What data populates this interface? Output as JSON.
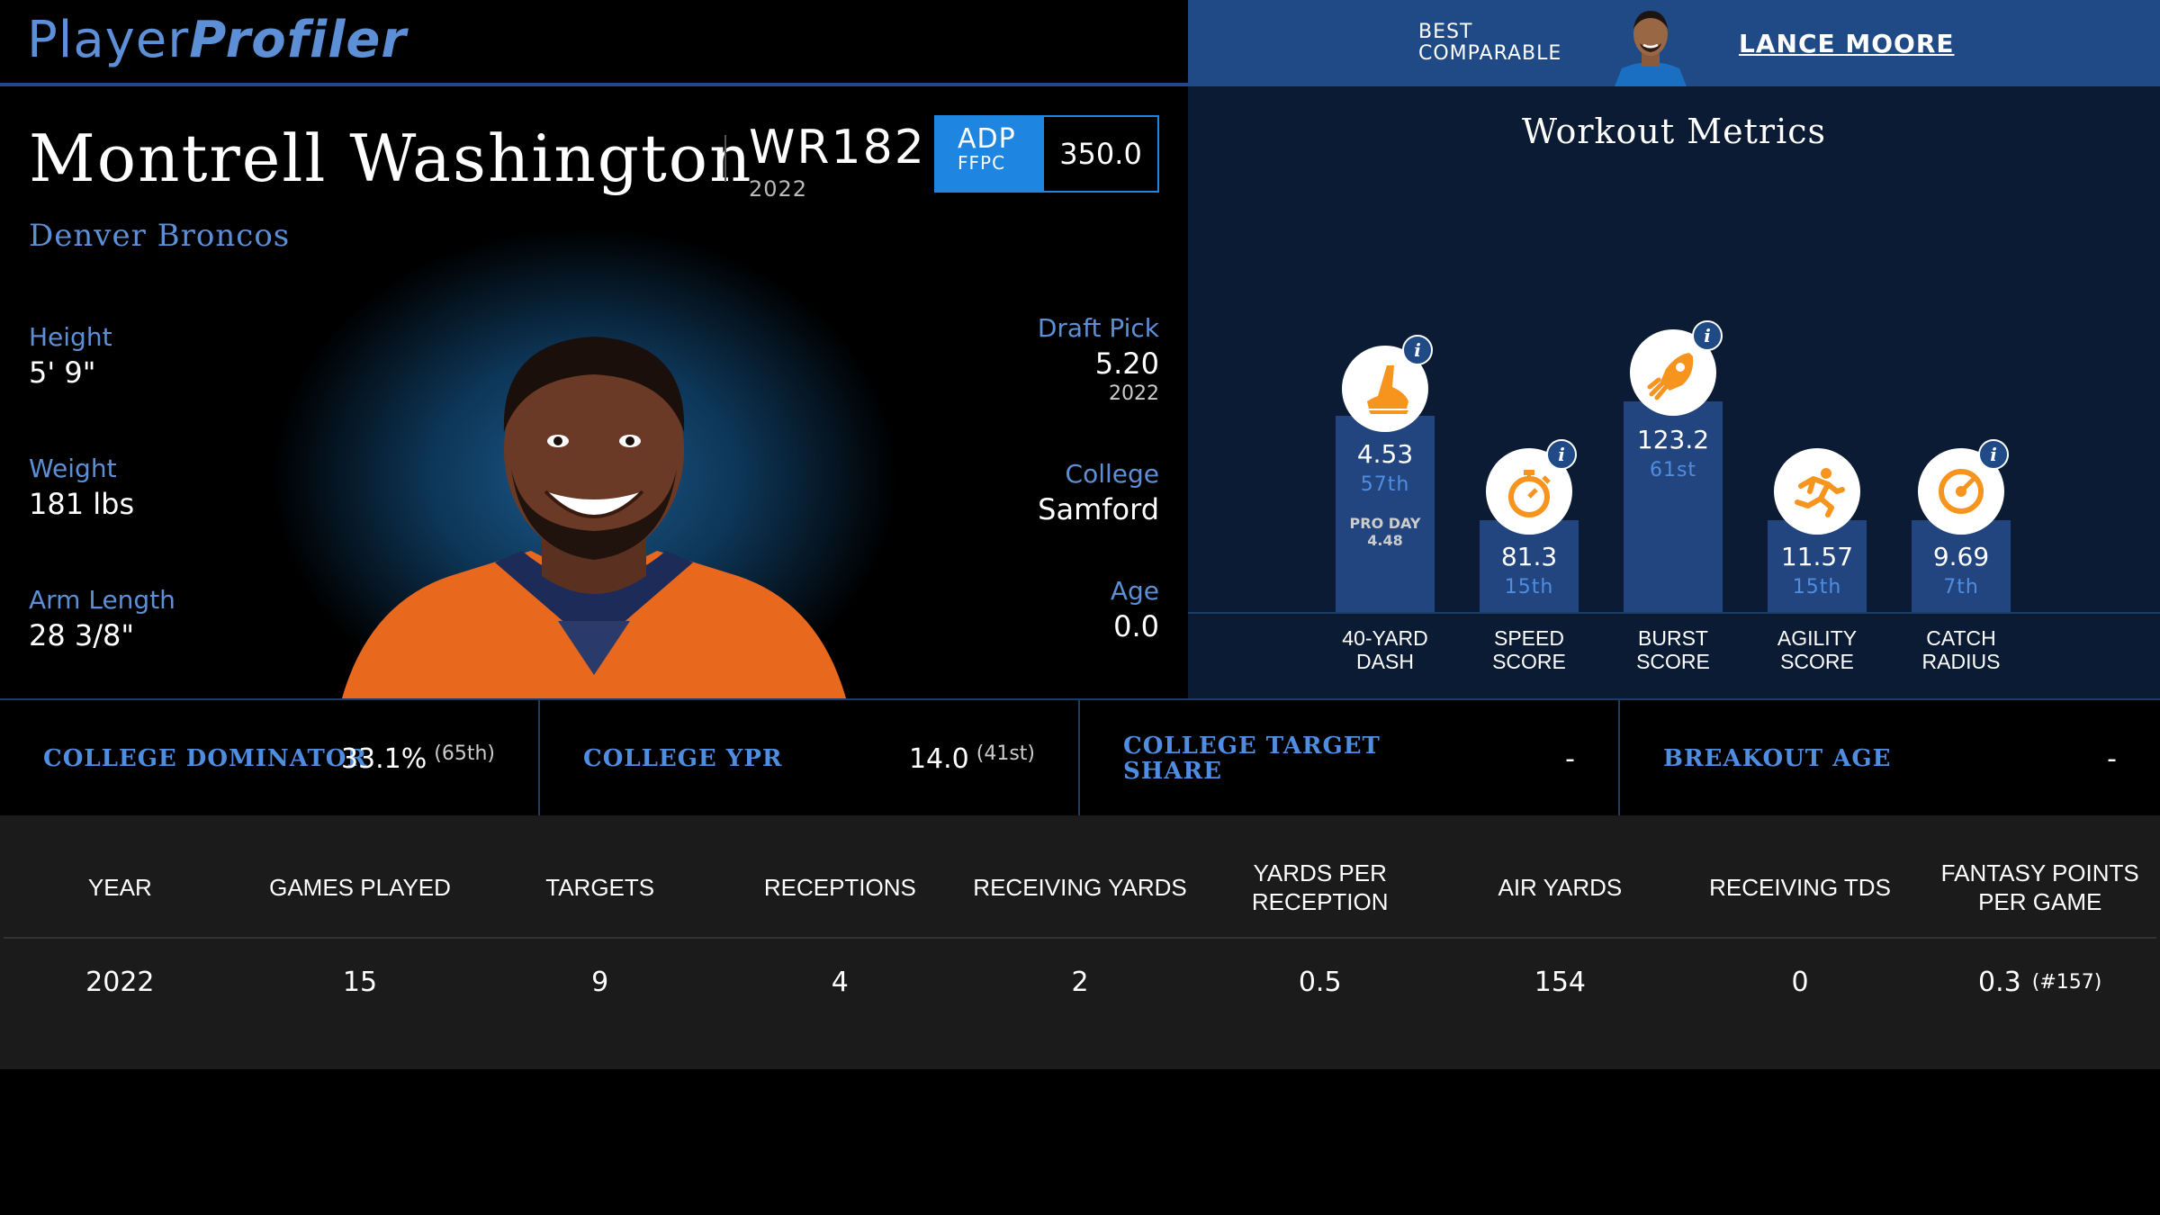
{
  "header": {
    "logo_part1": "Player",
    "logo_part2": "Profiler"
  },
  "comparable": {
    "label_line1": "BEST",
    "label_line2": "COMPARABLE",
    "name": "LANCE MOORE"
  },
  "player": {
    "name": "Montrell Washington",
    "position_rank": "WR182",
    "position_year": "2022",
    "adp_label": "ADP",
    "adp_source": "FFPC",
    "adp_value": "350.0",
    "team": "Denver Broncos"
  },
  "bio": {
    "height_label": "Height",
    "height_value": "5' 9\"",
    "weight_label": "Weight",
    "weight_value": "181 lbs",
    "arm_label": "Arm Length",
    "arm_value": "28 3/8\"",
    "draft_label": "Draft Pick",
    "draft_value": "5.20",
    "draft_year": "2022",
    "college_label": "College",
    "college_value": "Samford",
    "age_label": "Age",
    "age_value": "0.0"
  },
  "workout": {
    "title": "Workout Metrics",
    "info_glyph": "i",
    "metrics": [
      {
        "label_line1": "40-YARD",
        "label_line2": "DASH",
        "value": "4.53",
        "percentile": "57th",
        "percentile_num": 57,
        "extra_line1": "PRO DAY",
        "extra_line2": "4.48",
        "icon": "shoe-icon",
        "has_info": true
      },
      {
        "label_line1": "SPEED",
        "label_line2": "SCORE",
        "value": "81.3",
        "percentile": "15th",
        "percentile_num": 15,
        "icon": "stopwatch-icon",
        "has_info": true
      },
      {
        "label_line1": "BURST",
        "label_line2": "SCORE",
        "value": "123.2",
        "percentile": "61st",
        "percentile_num": 61,
        "icon": "rocket-icon",
        "has_info": true
      },
      {
        "label_line1": "AGILITY",
        "label_line2": "SCORE",
        "value": "11.57",
        "percentile": "15th",
        "percentile_num": 15,
        "icon": "runner-icon",
        "has_info": false
      },
      {
        "label_line1": "CATCH",
        "label_line2": "RADIUS",
        "value": "9.69",
        "percentile": "7th",
        "percentile_num": 7,
        "icon": "target-icon",
        "has_info": true
      }
    ]
  },
  "college": [
    {
      "label": "COLLEGE DOMINATOR",
      "value": "33.1%",
      "rank": "(65th)"
    },
    {
      "label": "COLLEGE YPR",
      "value": "14.0",
      "rank": "(41st)"
    },
    {
      "label_line1": "COLLEGE TARGET",
      "label_line2": "SHARE",
      "value": "-"
    },
    {
      "label": "BREAKOUT AGE",
      "value": "-"
    }
  ],
  "stats_table": {
    "headers": [
      "YEAR",
      "GAMES PLAYED",
      "TARGETS",
      "RECEPTIONS",
      "RECEIVING YARDS",
      "YARDS PER RECEPTION",
      "AIR YARDS",
      "RECEIVING TDS",
      "FANTASY POINTS PER GAME"
    ],
    "rows": [
      [
        "2022",
        "15",
        "9",
        "4",
        "2",
        "0.5",
        "154",
        "0",
        "0.3"
      ]
    ],
    "fpg_rank": "(#157)"
  },
  "colors": {
    "accent_blue": "#5d8fd6",
    "adp_blue": "#1e86e0",
    "bar_blue": "#22457f",
    "icon_orange": "#f7941d"
  }
}
